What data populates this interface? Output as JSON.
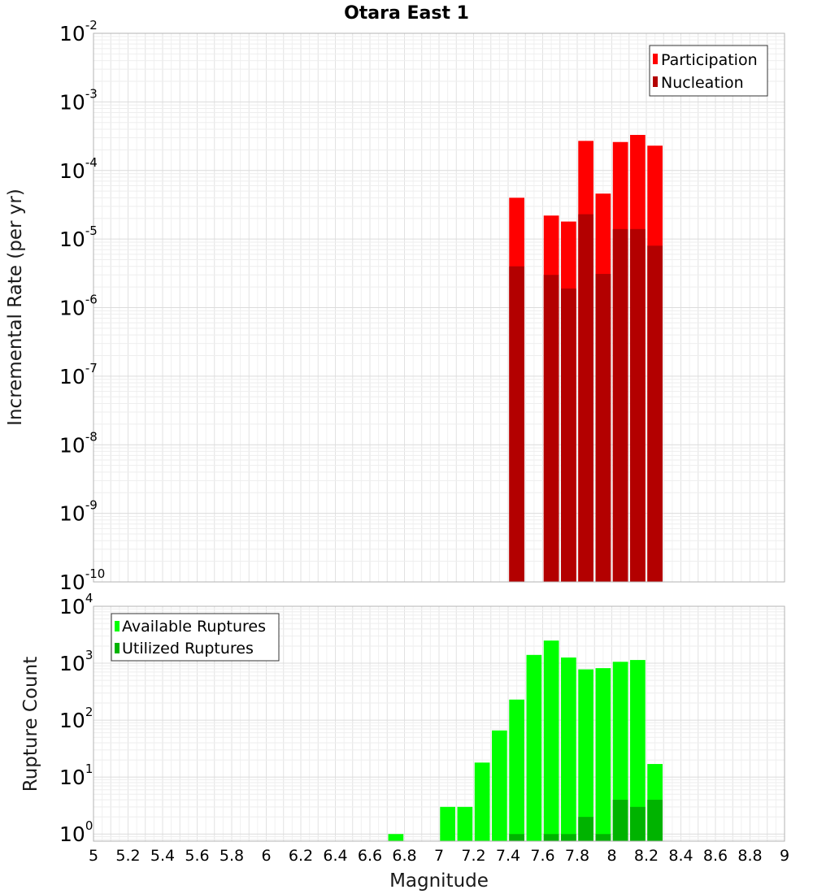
{
  "chart_data": [
    {
      "type": "bar",
      "panel": "top",
      "title": "Otara East 1",
      "xlabel": "",
      "ylabel": "Incremental Rate (per yr)",
      "y_scale": "log",
      "xlim": [
        5,
        9
      ],
      "ylim": [
        1e-10,
        0.01
      ],
      "y_tick_exponents": [
        -10,
        -9,
        -8,
        -7,
        -6,
        -5,
        -4,
        -3,
        -2
      ],
      "grid": true,
      "legend_position": "top-right",
      "x": [
        7.45,
        7.65,
        7.75,
        7.85,
        7.95,
        8.05,
        8.15,
        8.25
      ],
      "series": [
        {
          "name": "Participation",
          "color": "#ff0000",
          "values": [
            4e-05,
            2.2e-05,
            1.8e-05,
            0.00027,
            4.6e-05,
            0.00026,
            0.00033,
            0.00023
          ]
        },
        {
          "name": "Nucleation",
          "color": "#b30000",
          "values": [
            4e-06,
            3e-06,
            1.9e-06,
            2.3e-05,
            3.1e-06,
            1.4e-05,
            1.4e-05,
            8e-06
          ]
        }
      ]
    },
    {
      "type": "bar",
      "panel": "bottom",
      "title": "",
      "xlabel": "Magnitude",
      "ylabel": "Rupture Count",
      "y_scale": "log",
      "xlim": [
        5,
        9
      ],
      "ylim": [
        0.75,
        10000
      ],
      "y_tick_exponents": [
        0,
        1,
        2,
        3,
        4
      ],
      "x_ticks": [
        "5",
        "5.2",
        "5.4",
        "5.6",
        "5.8",
        "6",
        "6.2",
        "6.4",
        "6.6",
        "6.8",
        "7",
        "7.2",
        "7.4",
        "7.6",
        "7.8",
        "8",
        "8.2",
        "8.4",
        "8.6",
        "8.8",
        "9"
      ],
      "grid": true,
      "legend_position": "top-left",
      "x": [
        6.75,
        7.05,
        7.15,
        7.25,
        7.35,
        7.45,
        7.55,
        7.65,
        7.75,
        7.85,
        7.95,
        8.05,
        8.15,
        8.25
      ],
      "series": [
        {
          "name": "Available Ruptures",
          "color": "#00ff00",
          "values": [
            1,
            3,
            3,
            18,
            66,
            230,
            1400,
            2500,
            1260,
            780,
            820,
            1060,
            1140,
            17
          ]
        },
        {
          "name": "Utilized Ruptures",
          "color": "#00b300",
          "values": [
            null,
            null,
            null,
            null,
            null,
            1,
            null,
            1,
            1,
            2,
            1,
            4,
            3,
            4
          ]
        }
      ]
    }
  ]
}
